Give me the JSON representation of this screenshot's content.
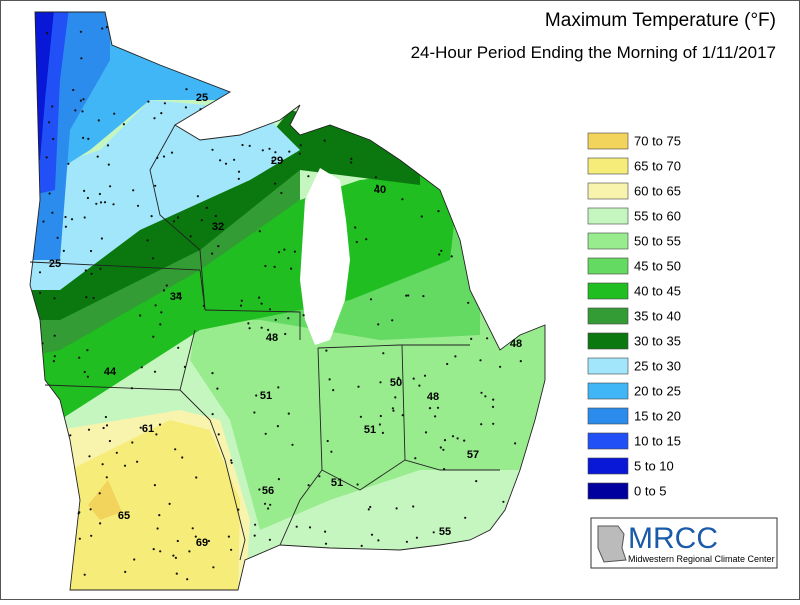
{
  "title": "Maximum Temperature (°F)",
  "subtitle": "24-Hour Period Ending the Morning of 1/11/2017",
  "legend": [
    {
      "label": "70 to 75",
      "color": "#f2d45c"
    },
    {
      "label": "65 to 70",
      "color": "#f6ec7a"
    },
    {
      "label": "60 to 65",
      "color": "#f9f4ad"
    },
    {
      "label": "55 to 60",
      "color": "#c6f6bf"
    },
    {
      "label": "50 to 55",
      "color": "#98ec8e"
    },
    {
      "label": "45 to 50",
      "color": "#64da62"
    },
    {
      "label": "40 to 45",
      "color": "#20be20"
    },
    {
      "label": "35 to 40",
      "color": "#349c34"
    },
    {
      "label": "30 to 35",
      "color": "#0a780e"
    },
    {
      "label": "25 to 30",
      "color": "#a2e6fc"
    },
    {
      "label": "20 to 25",
      "color": "#40b6f6"
    },
    {
      "label": "15 to 20",
      "color": "#2c8cee"
    },
    {
      "label": "10 to 15",
      "color": "#2050f6"
    },
    {
      "label": "5 to 10",
      "color": "#0818d6"
    },
    {
      "label": "0 to 5",
      "color": "#00009e"
    }
  ],
  "station_labels": [
    25,
    29,
    40,
    32,
    25,
    34,
    48,
    44,
    48,
    51,
    50,
    48,
    51,
    61,
    57,
    56,
    51,
    65,
    69,
    55
  ],
  "logo": {
    "name": "MRCC",
    "subtitle": "Midwestern Regional Climate Center"
  }
}
